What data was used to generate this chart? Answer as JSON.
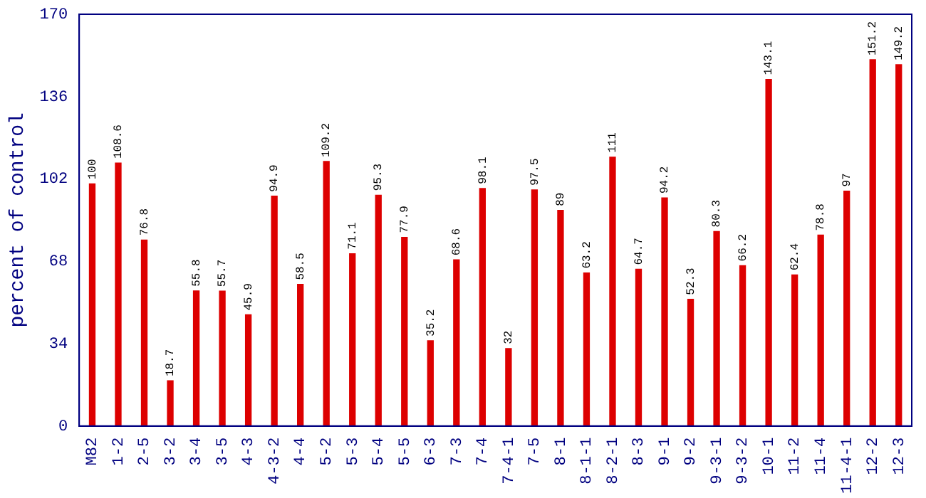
{
  "chart_data": {
    "type": "bar",
    "ylabel": "percent of control",
    "categories": [
      "M82",
      "1-2",
      "2-5",
      "3-2",
      "3-4",
      "3-5",
      "4-3",
      "4-3-2",
      "4-4",
      "5-2",
      "5-3",
      "5-4",
      "5-5",
      "6-3",
      "7-3",
      "7-4",
      "7-4-1",
      "7-5",
      "8-1",
      "8-1-1",
      "8-2-1",
      "8-3",
      "9-1",
      "9-2",
      "9-3-1",
      "9-3-2",
      "10-1",
      "11-2",
      "11-4",
      "11-4-1",
      "12-2",
      "12-3"
    ],
    "values": [
      100,
      108.6,
      76.8,
      18.7,
      55.8,
      55.7,
      45.9,
      94.9,
      58.5,
      109.2,
      71.1,
      95.3,
      77.9,
      35.2,
      68.6,
      98.1,
      32,
      97.5,
      89,
      63.2,
      111,
      64.7,
      94.2,
      52.3,
      80.3,
      66.2,
      143.1,
      62.4,
      78.8,
      97,
      151.2,
      149.2
    ],
    "color": "#dd0000",
    "ylim": [
      0,
      170
    ],
    "yticks": [
      0,
      34,
      68,
      102,
      136,
      170
    ],
    "grid": false,
    "legend": false,
    "data_labels": true
  }
}
